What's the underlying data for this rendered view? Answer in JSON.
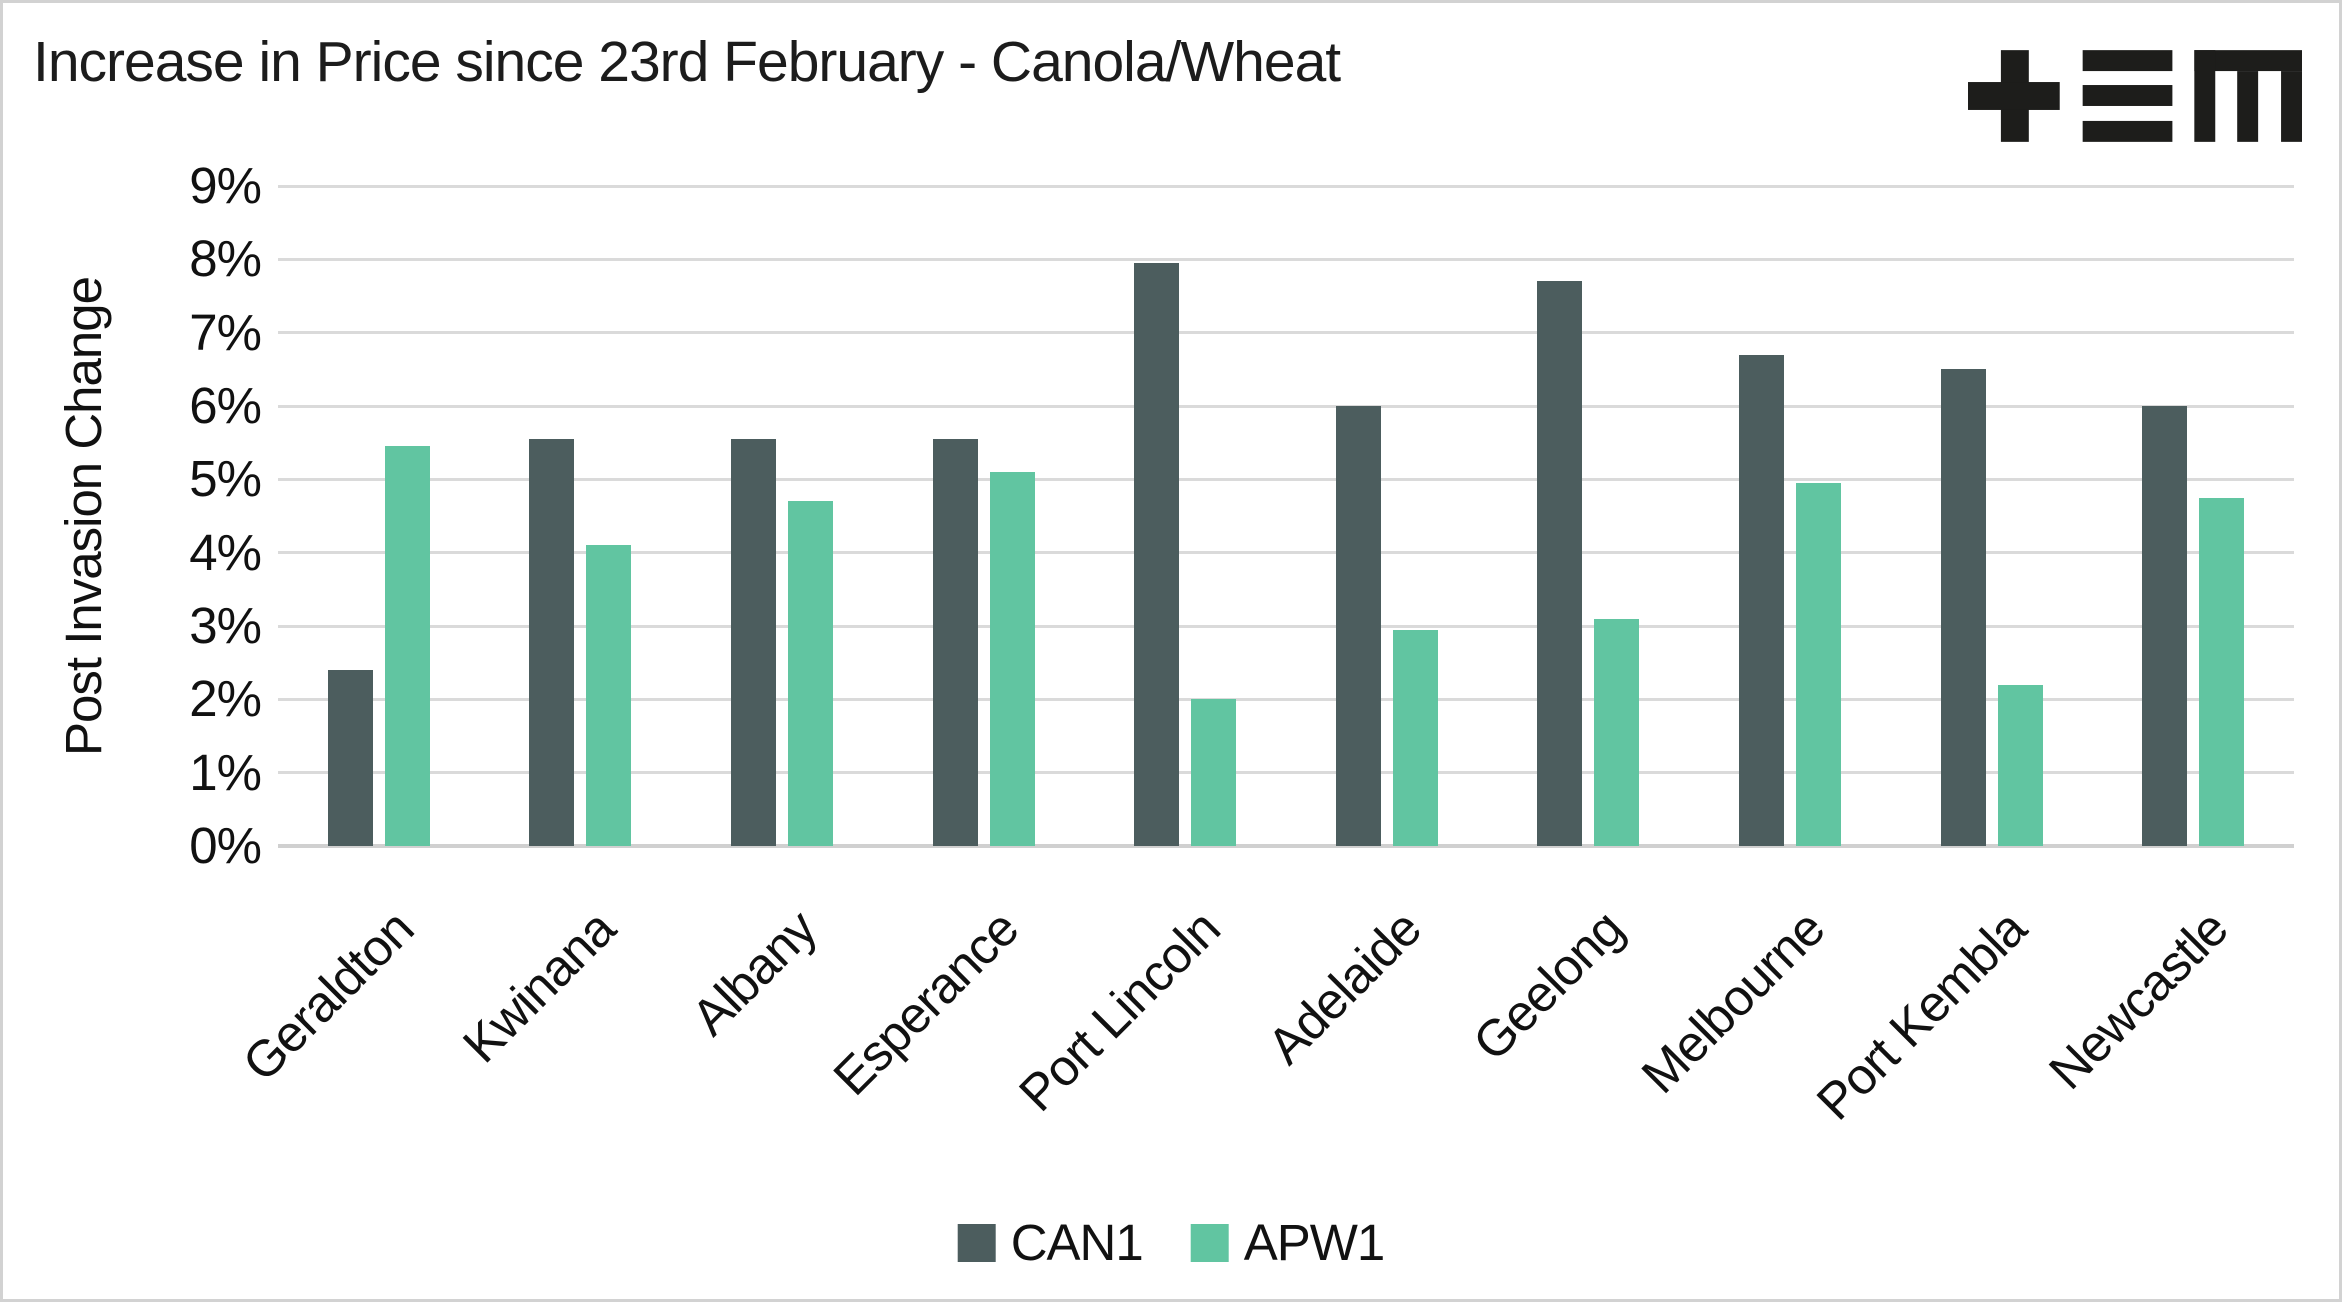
{
  "title": "Increase in Price since 23rd February - Canola/Wheat",
  "logo": {
    "name": "tem-logo",
    "color": "#1d1d1b"
  },
  "y_axis": {
    "title": "Post Invasion Change",
    "tick_labels": [
      "9%",
      "8%",
      "7%",
      "6%",
      "5%",
      "4%",
      "3%",
      "2%",
      "1%",
      "0%"
    ],
    "max": 9,
    "min": 0
  },
  "legend": {
    "entries": [
      {
        "label": "CAN1",
        "color": "#4c5d5e"
      },
      {
        "label": "APW1",
        "color": "#61c5a1"
      }
    ],
    "position": "bottom"
  },
  "colors": {
    "can1": "#4c5d5e",
    "apw1": "#61c5a1",
    "gridline": "#dadada",
    "axis_line": "#d0d0d0",
    "text": "#111111",
    "frame_border": "#d2d2d2",
    "background": "#ffffff"
  },
  "chart_data": {
    "type": "bar",
    "title": "Increase in Price since 23rd February - Canola/Wheat",
    "categories": [
      "Geraldton",
      "Kwinana",
      "Albany",
      "Esperance",
      "Port Lincoln",
      "Adelaide",
      "Geelong",
      "Melbourne",
      "Port Kembla",
      "Newcastle"
    ],
    "series": [
      {
        "name": "CAN1",
        "color": "#4c5d5e",
        "values": [
          2.4,
          5.55,
          5.55,
          5.55,
          7.95,
          6.0,
          7.7,
          6.7,
          6.5,
          6.0
        ]
      },
      {
        "name": "APW1",
        "color": "#61c5a1",
        "values": [
          5.45,
          4.1,
          4.7,
          5.1,
          2.0,
          2.95,
          3.1,
          4.95,
          2.2,
          4.75
        ]
      }
    ],
    "xlabel": "",
    "ylabel": "Post Invasion Change",
    "ylim": [
      0,
      9
    ],
    "ytick_format": "percent",
    "ytick_step": 1,
    "grid": true,
    "legend_position": "bottom",
    "xlabel_rotation_deg": -45
  }
}
